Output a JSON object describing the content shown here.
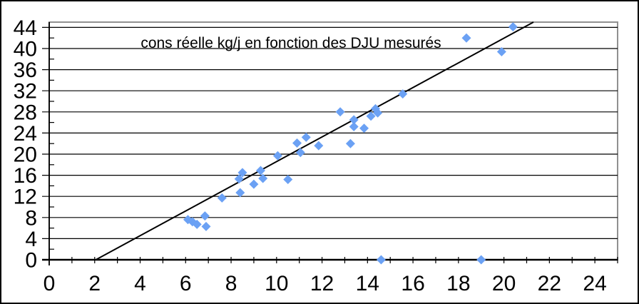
{
  "chart_data": {
    "type": "scatter",
    "title": "cons réelle kg/j en fonction des DJU mesurés",
    "xlabel": "",
    "ylabel": "",
    "xlim": [
      0,
      25
    ],
    "ylim": [
      0,
      45
    ],
    "x_major_tick_labels": [
      0,
      2,
      4,
      6,
      8,
      10,
      12,
      14,
      16,
      18,
      20,
      22,
      24
    ],
    "x_minor_tick_step": 1,
    "y_major_tick_labels": [
      0,
      4,
      8,
      12,
      16,
      20,
      24,
      28,
      32,
      36,
      40,
      44
    ],
    "y_minor_tick_step": 2,
    "grid": "horizontal-gridlines-every-4",
    "legend": "none",
    "series": [
      {
        "marker": "diamond",
        "color": "#6BA1F4",
        "points": [
          [
            6.1,
            7.6
          ],
          [
            6.3,
            7.2
          ],
          [
            6.5,
            6.7
          ],
          [
            6.85,
            8.3
          ],
          [
            6.9,
            6.3
          ],
          [
            7.6,
            11.7
          ],
          [
            8.35,
            15.3
          ],
          [
            8.4,
            12.7
          ],
          [
            8.5,
            16.5
          ],
          [
            9.0,
            14.3
          ],
          [
            9.3,
            16.9
          ],
          [
            9.4,
            15.4
          ],
          [
            10.05,
            19.7
          ],
          [
            10.5,
            15.2
          ],
          [
            10.9,
            22.1
          ],
          [
            11.05,
            20.3
          ],
          [
            11.3,
            23.2
          ],
          [
            11.85,
            21.6
          ],
          [
            12.8,
            28.0
          ],
          [
            13.25,
            22.0
          ],
          [
            13.4,
            26.5
          ],
          [
            13.4,
            25.2
          ],
          [
            13.85,
            24.9
          ],
          [
            14.15,
            27.2
          ],
          [
            14.35,
            28.6
          ],
          [
            14.45,
            27.8
          ],
          [
            14.6,
            0
          ],
          [
            15.55,
            31.4
          ],
          [
            18.35,
            42.0
          ],
          [
            19.0,
            0
          ],
          [
            19.9,
            39.4
          ],
          [
            20.4,
            44.1
          ]
        ]
      }
    ],
    "trendline": {
      "start": [
        2.05,
        0
      ],
      "end": [
        21.3,
        45
      ],
      "color": "#000000"
    }
  },
  "colors": {
    "background": "#ffffff",
    "plot_border": "#909090",
    "gridline": "#000000",
    "axis": "#000000",
    "marker": "#6BA1F4",
    "outer_border": "#000000"
  }
}
